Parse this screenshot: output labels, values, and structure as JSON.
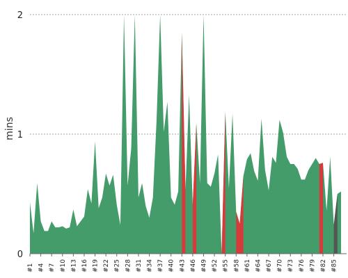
{
  "chart_data": {
    "type": "area",
    "ylabel": "mins",
    "ylim": [
      0,
      2.0
    ],
    "yticks": [
      0,
      1,
      2
    ],
    "grid": true,
    "x_tick_labels": [
      "#1",
      "#4",
      "#7",
      "#10",
      "#13",
      "#16",
      "#19",
      "#22",
      "#25",
      "#28",
      "#31",
      "#34",
      "#37",
      "#40",
      "#43",
      "#46",
      "#49",
      "#52",
      "#55",
      "#58",
      "#61",
      "#64",
      "#67",
      "#70",
      "#73",
      "#76",
      "#79",
      "#82",
      "#85"
    ],
    "n_points": 87,
    "values": [
      0.43,
      0.17,
      0.59,
      0.27,
      0.19,
      0.19,
      0.27,
      0.22,
      0.22,
      0.23,
      0.21,
      0.22,
      0.37,
      0.23,
      0.27,
      0.31,
      0.54,
      0.42,
      0.94,
      0.38,
      0.47,
      0.67,
      0.57,
      0.66,
      0.41,
      0.24,
      2.0,
      0.57,
      0.88,
      2.0,
      0.47,
      0.59,
      0.4,
      0.3,
      0.47,
      1.11,
      2.0,
      1.02,
      1.27,
      0.47,
      0.41,
      0.52,
      1.85,
      0.53,
      1.33,
      0.41,
      1.09,
      0.59,
      2.0,
      0.59,
      0.56,
      0.67,
      0.83,
      0.0,
      1.19,
      0.55,
      1.17,
      0.35,
      0.25,
      0.65,
      0.79,
      0.84,
      0.69,
      0.61,
      1.13,
      0.7,
      0.53,
      0.81,
      0.76,
      1.12,
      1.01,
      0.81,
      0.75,
      0.75,
      0.71,
      0.62,
      0.62,
      0.7,
      0.75,
      0.8,
      0.75,
      0.76,
      0.36,
      0.81,
      0.24,
      0.5,
      0.52
    ],
    "highlights": [
      {
        "start": 42,
        "end": 43,
        "color": "#d63b3b"
      },
      {
        "start": 45,
        "end": 46,
        "color": "#d63b3b"
      },
      {
        "start": 53,
        "end": 54,
        "color": "#d63b3b"
      },
      {
        "start": 57,
        "end": 59,
        "color": "#d63b3b"
      },
      {
        "start": 80,
        "end": 81,
        "color": "#d63b3b"
      },
      {
        "start": 84,
        "end": 85,
        "color": "#555555"
      }
    ],
    "colors": {
      "area": "#449c6a",
      "highlight_red": "#d63b3b",
      "highlight_gray": "#555555"
    }
  }
}
